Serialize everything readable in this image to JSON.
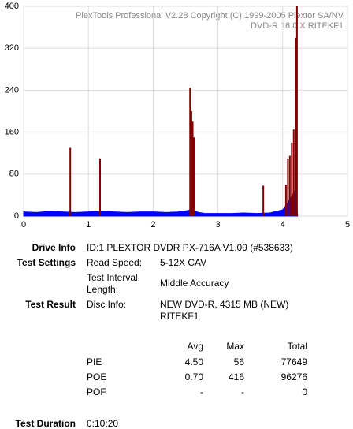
{
  "chart_data": {
    "type": "area-spikes",
    "header_lines": [
      "PlexTools Professional V2.28 Copyright (C) 1999-2005 Plextor SA/NV",
      "DVD-R    16.0 X    RITEKF1"
    ],
    "xlim": [
      0,
      5
    ],
    "xticks": [
      0,
      1,
      2,
      3,
      4,
      5
    ],
    "ylim": [
      0,
      400
    ],
    "yticks": [
      0,
      80,
      160,
      240,
      320,
      400
    ],
    "grid": true,
    "series": [
      {
        "name": "PIE",
        "color": "#0000ff",
        "x": [
          0,
          0.2,
          0.4,
          0.6,
          0.8,
          1.0,
          1.2,
          1.4,
          1.6,
          1.8,
          2.0,
          2.2,
          2.4,
          2.5,
          2.6,
          2.7,
          2.8,
          3.0,
          3.2,
          3.4,
          3.6,
          3.8,
          4.0,
          4.05,
          4.1,
          4.15,
          4.2,
          4.23
        ],
        "values": [
          8,
          7,
          9,
          8,
          7,
          8,
          9,
          8,
          7,
          8,
          8,
          7,
          8,
          10,
          12,
          7,
          5,
          5,
          5,
          6,
          5,
          6,
          12,
          20,
          30,
          40,
          50,
          0
        ]
      },
      {
        "name": "POE",
        "color": "#800000",
        "x": [
          0.72,
          1.18,
          2.57,
          2.59,
          2.61,
          2.63,
          3.7,
          4.05,
          4.08,
          4.11,
          4.14,
          4.17,
          4.2,
          4.22
        ],
        "values": [
          130,
          110,
          245,
          200,
          180,
          150,
          58,
          60,
          110,
          115,
          140,
          165,
          340,
          400
        ]
      }
    ]
  },
  "info": {
    "drive_info": {
      "label": "Drive Info",
      "value": "ID:1 PLEXTOR DVDR PX-716A V1.09 (#538633)"
    },
    "test_settings": {
      "label": "Test Settings",
      "read_speed_label": "Read Speed:",
      "read_speed": "5-12X CAV",
      "interval_label": "Test Interval Length:",
      "interval": "Middle Accuracy"
    },
    "test_result": {
      "label": "Test Result",
      "disc_info_label": "Disc Info:",
      "disc_info": "NEW DVD-R, 4315 MB (NEW) RITEKF1"
    },
    "table": {
      "headers": [
        "Avg",
        "Max",
        "Total"
      ],
      "rows": [
        [
          "PIE",
          "4.50",
          "56",
          "77649"
        ],
        [
          "POE",
          "0.70",
          "416",
          "96276"
        ],
        [
          "POF",
          "-",
          "-",
          "0"
        ]
      ]
    },
    "test_duration": {
      "label": "Test Duration",
      "value": "0:10:20"
    }
  }
}
